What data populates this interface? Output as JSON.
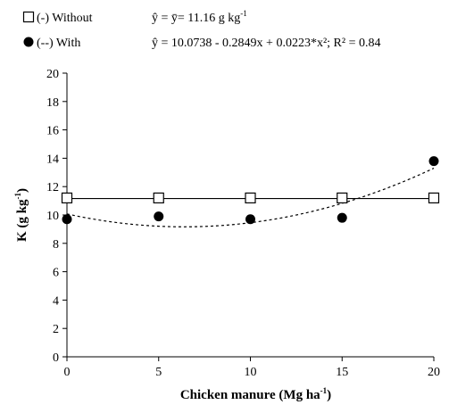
{
  "chart_data": {
    "type": "scatter",
    "title": "",
    "x": [
      0,
      5,
      10,
      15,
      20
    ],
    "xlim": [
      0,
      20
    ],
    "ylim": [
      0,
      20
    ],
    "x_ticks": [
      "0",
      "5",
      "10",
      "15",
      "20"
    ],
    "y_ticks": [
      "0",
      "2",
      "4",
      "6",
      "8",
      "10",
      "12",
      "14",
      "16",
      "18",
      "20"
    ],
    "xlabel": {
      "main": "Chicken manure (Mg ha",
      "sup": "-1",
      "tail": ")"
    },
    "ylabel": {
      "main": "K (g kg",
      "sup": "-1",
      "tail": ")"
    },
    "grid": false,
    "legend_position": "top-left",
    "series": [
      {
        "name": "(-) Without",
        "marker": "open-square",
        "values": [
          11.2,
          11.2,
          11.2,
          11.2,
          11.2
        ],
        "fit": {
          "kind": "constant",
          "line_style": "solid",
          "c": 11.16
        },
        "equation": {
          "main": "ŷ = ȳ= 11.16 g kg",
          "sup": "-1",
          "tail": ""
        }
      },
      {
        "name": "(--) With",
        "marker": "filled-circle",
        "values": [
          9.7,
          9.9,
          9.7,
          9.8,
          13.8
        ],
        "fit": {
          "kind": "quadratic",
          "line_style": "dashed",
          "a": 10.0738,
          "b": -0.2849,
          "c": 0.0223
        },
        "equation": {
          "main": "ŷ = 10.0738 - 0.2849x + 0.0223*x²; R² = 0.84",
          "sup": "",
          "tail": ""
        }
      }
    ]
  }
}
